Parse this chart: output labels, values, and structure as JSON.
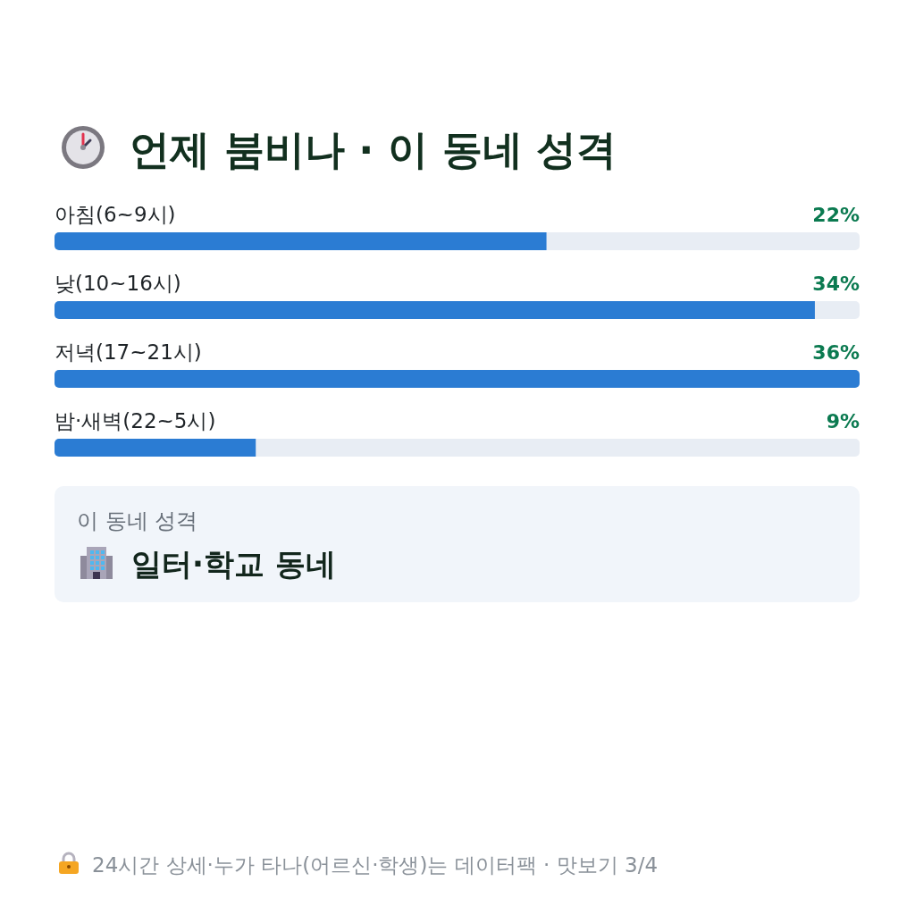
{
  "chart_data": [
    {
      "type": "bar",
      "title": "언제 붐비나 · 이 동네 성격",
      "orientation": "horizontal",
      "categories": [
        "아침(6~9시)",
        "낮(10~16시)",
        "저녁(17~21시)",
        "밤·새벽(22~5시)"
      ],
      "values": [
        22,
        34,
        36,
        9
      ],
      "value_labels": [
        "22%",
        "34%",
        "36%",
        "9%"
      ],
      "color": "#2b7cd3"
    },
    {
      "type": "other",
      "title": "이 동네 성격",
      "subtitle": "일터·학교 동네",
      "annotations": [
        "24시간 상세·누가 타나(어르신·학생)는 데이터팩 · 맛보기 3/4"
      ]
    }
  ]
}
